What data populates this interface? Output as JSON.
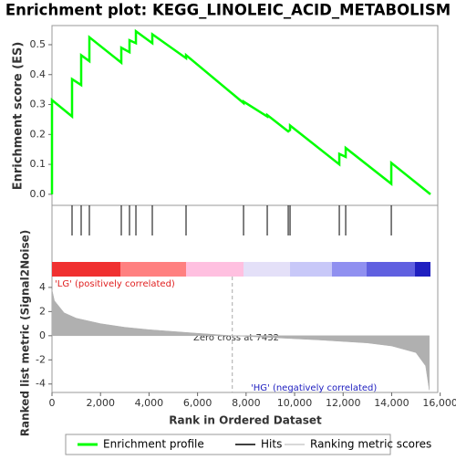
{
  "chart_data": [
    {
      "type": "line",
      "title": "Enrichment plot: KEGG_LINOLEIC_ACID_METABOLISM",
      "ylabel": "Enrichment score (ES)",
      "xlim": [
        0,
        15900
      ],
      "ylim": [
        -0.037,
        0.564
      ],
      "yticks": [
        {
          "value": 0,
          "label": "0.0"
        },
        0.1,
        0.2,
        0.3,
        0.4,
        0.5
      ],
      "grid": false,
      "series": [
        {
          "name": "Enrichment profile",
          "color": "#00ff00",
          "x": [
            0,
            0,
            827,
            827,
            1203,
            1203,
            1541,
            1541,
            2857,
            2857,
            3195,
            3195,
            3459,
            3459,
            4135,
            4135,
            5526,
            5526,
            7895,
            7895,
            8872,
            8872,
            9737,
            9812,
            9812,
            11842,
            11842,
            12105,
            12105,
            13985,
            13985,
            15600
          ],
          "values": [
            0,
            0.315,
            0.26,
            0.385,
            0.365,
            0.465,
            0.445,
            0.525,
            0.44,
            0.49,
            0.475,
            0.515,
            0.505,
            0.545,
            0.505,
            0.535,
            0.455,
            0.465,
            0.305,
            0.31,
            0.26,
            0.265,
            0.21,
            0.215,
            0.23,
            0.1,
            0.135,
            0.125,
            0.155,
            0.035,
            0.105,
            0
          ]
        }
      ]
    },
    {
      "type": "hits",
      "xlim": [
        0,
        15900
      ],
      "series": [
        {
          "name": "Hits",
          "color": "#000000",
          "x": [
            827,
            1203,
            1541,
            2857,
            3195,
            3459,
            4135,
            5526,
            7895,
            8872,
            9737,
            9812,
            11842,
            12105,
            13985
          ]
        }
      ]
    },
    {
      "type": "area",
      "xlabel": "Rank in Ordered Dataset",
      "ylabel": "Ranked list metric (Signal2Noise)",
      "xlim": [
        0,
        15900
      ],
      "ylim": [
        -4.7,
        4.9
      ],
      "yticks": [
        -4,
        -2,
        0,
        2,
        4
      ],
      "xticks": [
        0,
        {
          "value": 2000,
          "label": "2,000"
        },
        {
          "value": 4000,
          "label": "4,000"
        },
        {
          "value": 6000,
          "label": "6,000"
        },
        {
          "value": 8000,
          "label": "8,000"
        },
        {
          "value": 10000,
          "label": "10,000"
        },
        {
          "value": 12000,
          "label": "12,000"
        },
        {
          "value": 14000,
          "label": "14,000"
        },
        {
          "value": 16000,
          "label": "16,000"
        }
      ],
      "series": [
        {
          "name": "Ranking metric scores",
          "color": "#b0b0b0",
          "x": [
            0,
            100,
            500,
            1000,
            2000,
            3000,
            4000,
            5000,
            6000,
            7432,
            9000,
            11000,
            13000,
            14000,
            15000,
            15400,
            15550
          ],
          "values": [
            3.8,
            2.9,
            1.9,
            1.45,
            1.0,
            0.7,
            0.5,
            0.35,
            0.2,
            0,
            -0.15,
            -0.35,
            -0.6,
            -0.85,
            -1.4,
            -2.5,
            -4.5
          ]
        }
      ],
      "zero_cross": 7432,
      "annotations": [
        "'LG' (positively correlated)",
        "Zero cross at 7432",
        "'HG' (negatively correlated)"
      ]
    }
  ]
}
